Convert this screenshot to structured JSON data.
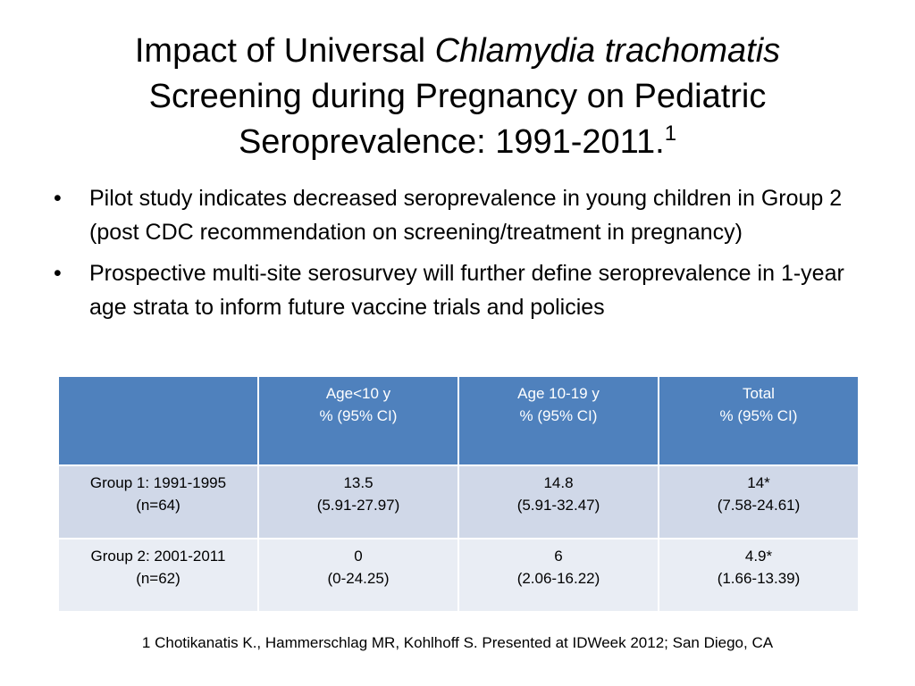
{
  "title": {
    "part1": "Impact of Universal ",
    "part_italic": "Chlamydia trachomatis",
    "line2": "Screening during Pregnancy on Pediatric",
    "line3": "Seroprevalence: 1991-2011.",
    "superscript": "1"
  },
  "bullets": [
    {
      "marker": "•",
      "text": "Pilot study indicates decreased seroprevalence in young children in Group 2 (post CDC recommendation on screening/treatment in pregnancy)"
    },
    {
      "marker": "•",
      "text": "Prospective multi-site serosurvey will further define seroprevalence in 1-year age strata to inform future vaccine trials and policies"
    }
  ],
  "table": {
    "headers": [
      {
        "line1": "",
        "line2": ""
      },
      {
        "line1": "Age<10 y",
        "line2": "% (95% CI)"
      },
      {
        "line1": "Age 10-19 y",
        "line2": "% (95% CI)"
      },
      {
        "line1": "Total",
        "line2": "% (95% CI)"
      }
    ],
    "rows": [
      [
        {
          "line1": "Group 1: 1991-1995",
          "line2": "(n=64)"
        },
        {
          "line1": "13.5",
          "line2": "(5.91-27.97)"
        },
        {
          "line1": "14.8",
          "line2": "(5.91-32.47)"
        },
        {
          "line1": "14*",
          "line2": "(7.58-24.61)"
        }
      ],
      [
        {
          "line1": "Group 2: 2001-2011",
          "line2": "(n=62)"
        },
        {
          "line1": "0",
          "line2": "(0-24.25)"
        },
        {
          "line1": "6",
          "line2": "(2.06-16.22)"
        },
        {
          "line1": "4.9*",
          "line2": "(1.66-13.39)"
        }
      ]
    ]
  },
  "footnote": "1 Chotikanatis K., Hammerschlag MR, Kohlhoff S. Presented at IDWeek 2012; San Diego, CA",
  "colors": {
    "header_bg": "#4f81bd",
    "row1_bg": "#d0d8e8",
    "row2_bg": "#e9edf4"
  }
}
